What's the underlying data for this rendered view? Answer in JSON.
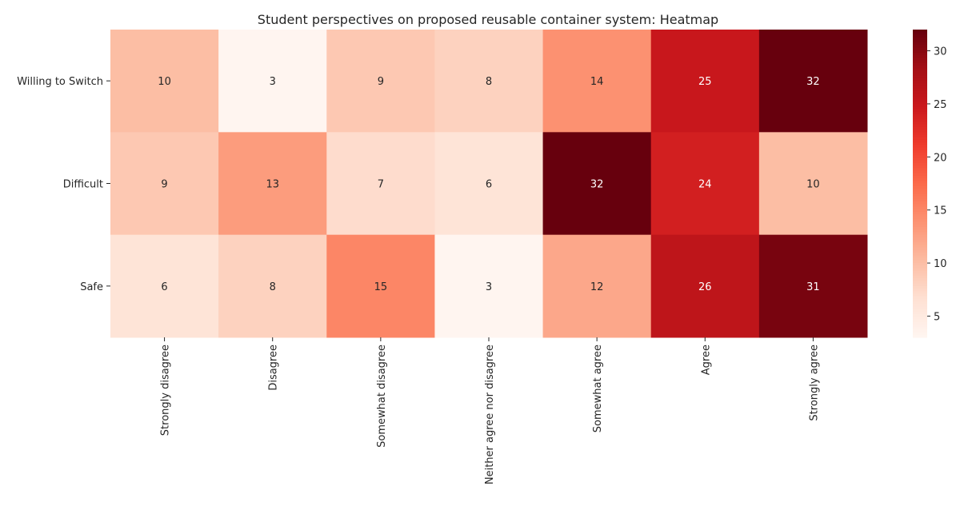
{
  "chart_data": {
    "type": "heatmap",
    "title": "Student perspectives on proposed reusable container system: Heatmap",
    "xlabel": "",
    "ylabel": "",
    "rows": [
      "Willing to Switch",
      "Difficult",
      "Safe"
    ],
    "columns": [
      "Strongly disagree",
      "Disagree",
      "Somewhat disagree",
      "Neither agree nor disagree",
      "Somewhat agree",
      "Agree",
      "Strongly agree"
    ],
    "values": [
      [
        10,
        3,
        9,
        8,
        14,
        25,
        32
      ],
      [
        9,
        13,
        7,
        6,
        32,
        24,
        10
      ],
      [
        6,
        8,
        15,
        3,
        12,
        26,
        31
      ]
    ],
    "colormap": "Reds",
    "vmin": 3,
    "vmax": 32,
    "colorbar_ticks": [
      5,
      10,
      15,
      20,
      25,
      30
    ],
    "annotate": true
  }
}
